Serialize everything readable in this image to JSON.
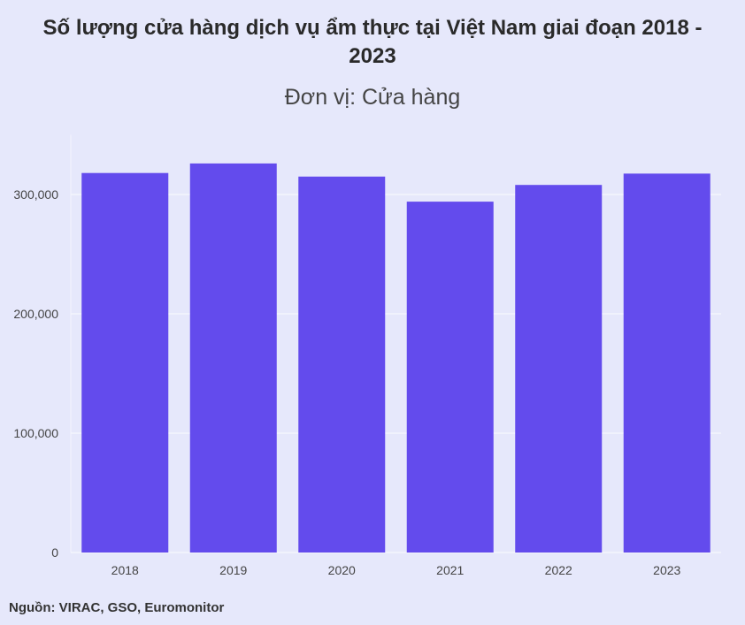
{
  "chart_data": {
    "type": "bar",
    "title": "Số lượng cửa hàng dịch vụ ẩm thực tại Việt Nam giai đoạn 2018 - 2023",
    "subtitle": "Đơn vị: Cửa hàng",
    "categories": [
      "2018",
      "2019",
      "2020",
      "2021",
      "2022",
      "2023"
    ],
    "values": [
      318000,
      326000,
      315000,
      294000,
      308000,
      317500
    ],
    "ylim": [
      0,
      350000
    ],
    "yticks": [
      0,
      100000,
      200000,
      300000
    ],
    "ytick_labels": [
      "0",
      "100,000",
      "200,000",
      "300,000"
    ],
    "xlabel": "",
    "ylabel": "",
    "grid": true,
    "legend": "none",
    "bar_color": "#634bed"
  },
  "source": "Nguồn: VIRAC, GSO, Euromonitor"
}
